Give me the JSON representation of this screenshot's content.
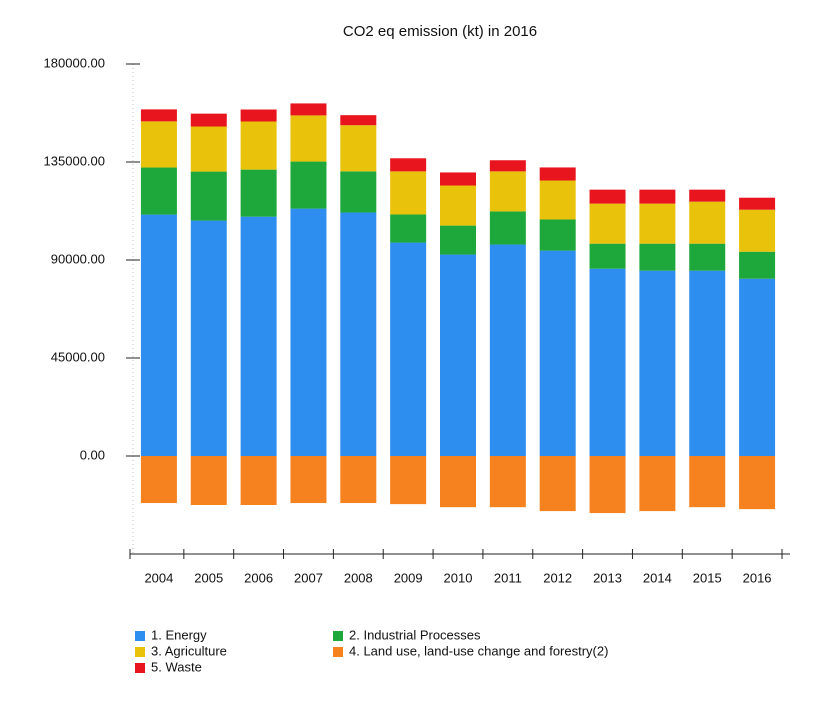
{
  "chart_data": {
    "type": "stacked_bar",
    "title": "CO2 eq emission (kt) in 2016",
    "categories": [
      "2004",
      "2005",
      "2006",
      "2007",
      "2008",
      "2009",
      "2010",
      "2011",
      "2012",
      "2013",
      "2014",
      "2015",
      "2016"
    ],
    "series": [
      {
        "name": "1. Energy",
        "color": "#2e8ef0",
        "values": [
          110860,
          108100,
          109900,
          113600,
          111800,
          98000,
          92500,
          97100,
          94300,
          86000,
          85100,
          85100,
          81400
        ]
      },
      {
        "name": "2.  Industrial Processes",
        "color": "#1ea83c",
        "values": [
          21600,
          22500,
          21600,
          21600,
          18900,
          12900,
          13300,
          15200,
          14300,
          11500,
          12400,
          12400,
          12400
        ]
      },
      {
        "name": "3.  Agriculture",
        "color": "#e9c20b",
        "values": [
          21200,
          20700,
          22100,
          21200,
          21200,
          19800,
          18400,
          18400,
          17900,
          18400,
          18400,
          19300,
          19300
        ]
      },
      {
        "name": "4. Land use, land-use change and forestry(2)",
        "color": "#f6821f",
        "values": [
          -21600,
          -22500,
          -22500,
          -21600,
          -21600,
          -22100,
          -23500,
          -23500,
          -25300,
          -26200,
          -25300,
          -23500,
          -24400
        ]
      },
      {
        "name": "5.  Waste",
        "color": "#e8141e",
        "values": [
          5500,
          5900,
          5500,
          5500,
          4600,
          6000,
          6000,
          5100,
          6000,
          6400,
          6400,
          5500,
          5500
        ]
      }
    ],
    "ylim": [
      -45000,
      180000
    ],
    "yticks": [
      {
        "value": 0,
        "label": "0.00"
      },
      {
        "value": 45000,
        "label": "45000.00"
      },
      {
        "value": 90000,
        "label": "90000.00"
      },
      {
        "value": 135000,
        "label": "135000.00"
      },
      {
        "value": 180000,
        "label": "180000.00"
      }
    ]
  }
}
